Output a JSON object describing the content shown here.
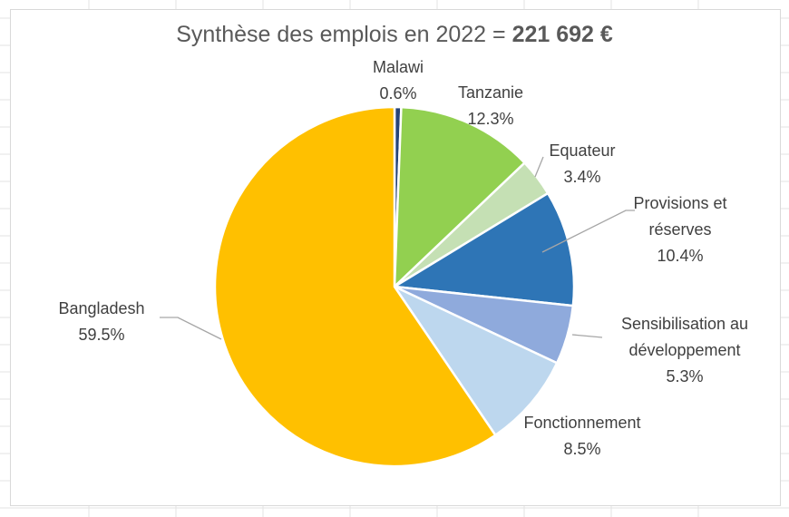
{
  "chart_data": {
    "type": "pie",
    "title": "Synthèse des emplois en 2022 = ",
    "title_amount": "221 692 €",
    "start_angle_deg": 0,
    "direction": "clockwise",
    "legend": "none",
    "slices": [
      {
        "name": "Malawi",
        "value": 0.6,
        "label": "0.6%",
        "color": "#264478"
      },
      {
        "name": "Tanzanie",
        "value": 12.3,
        "label": "12.3%",
        "color": "#92d050"
      },
      {
        "name": "Equateur",
        "value": 3.4,
        "label": "3.4%",
        "color": "#c5e0b4"
      },
      {
        "name": "Provisions et réserves",
        "name_lines": [
          "Provisions et",
          "réserves"
        ],
        "value": 10.4,
        "label": "10.4%",
        "color": "#2e75b6"
      },
      {
        "name": "Sensibilisation au développement",
        "name_lines": [
          "Sensibilisation au",
          "développement"
        ],
        "value": 5.3,
        "label": "5.3%",
        "color": "#8faadc"
      },
      {
        "name": "Fonctionnement",
        "value": 8.5,
        "label": "8.5%",
        "color": "#bdd7ee"
      },
      {
        "name": "Bangladesh",
        "value": 59.5,
        "label": "59.5%",
        "color": "#ffc000"
      }
    ]
  }
}
